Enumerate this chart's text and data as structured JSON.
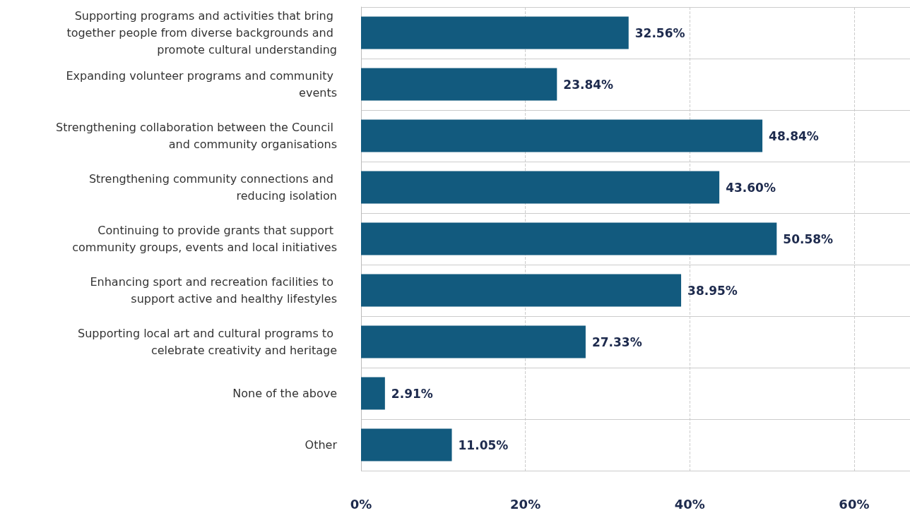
{
  "chart_data": {
    "type": "bar",
    "orientation": "horizontal",
    "categories": [
      "Supporting programs and activities that bring together people from diverse backgrounds and promote cultural understanding",
      "Expanding volunteer programs and community events",
      "Strengthening collaboration between the Council and community organisations",
      "Strengthening community connections and reducing isolation",
      "Continuing to provide grants that support community groups, events and local initiatives",
      "Enhancing sport and recreation facilities to support active and healthy lifestyles",
      "Supporting local art and cultural programs to celebrate creativity and heritage",
      "None of the above",
      "Other"
    ],
    "values": [
      32.56,
      23.84,
      48.84,
      43.6,
      50.58,
      38.95,
      27.33,
      2.91,
      11.05
    ],
    "value_labels": [
      "32.56%",
      "23.84%",
      "48.84%",
      "43.60%",
      "50.58%",
      "38.95%",
      "27.33%",
      "2.91%",
      "11.05%"
    ],
    "color": "#125a7e",
    "xlim": [
      0,
      66.8
    ],
    "xticks": [
      {
        "value": 0,
        "label": "0%"
      },
      {
        "value": 20,
        "label": "20%"
      },
      {
        "value": 40,
        "label": "40%"
      },
      {
        "value": 60,
        "label": "60%"
      }
    ],
    "grid": true
  }
}
